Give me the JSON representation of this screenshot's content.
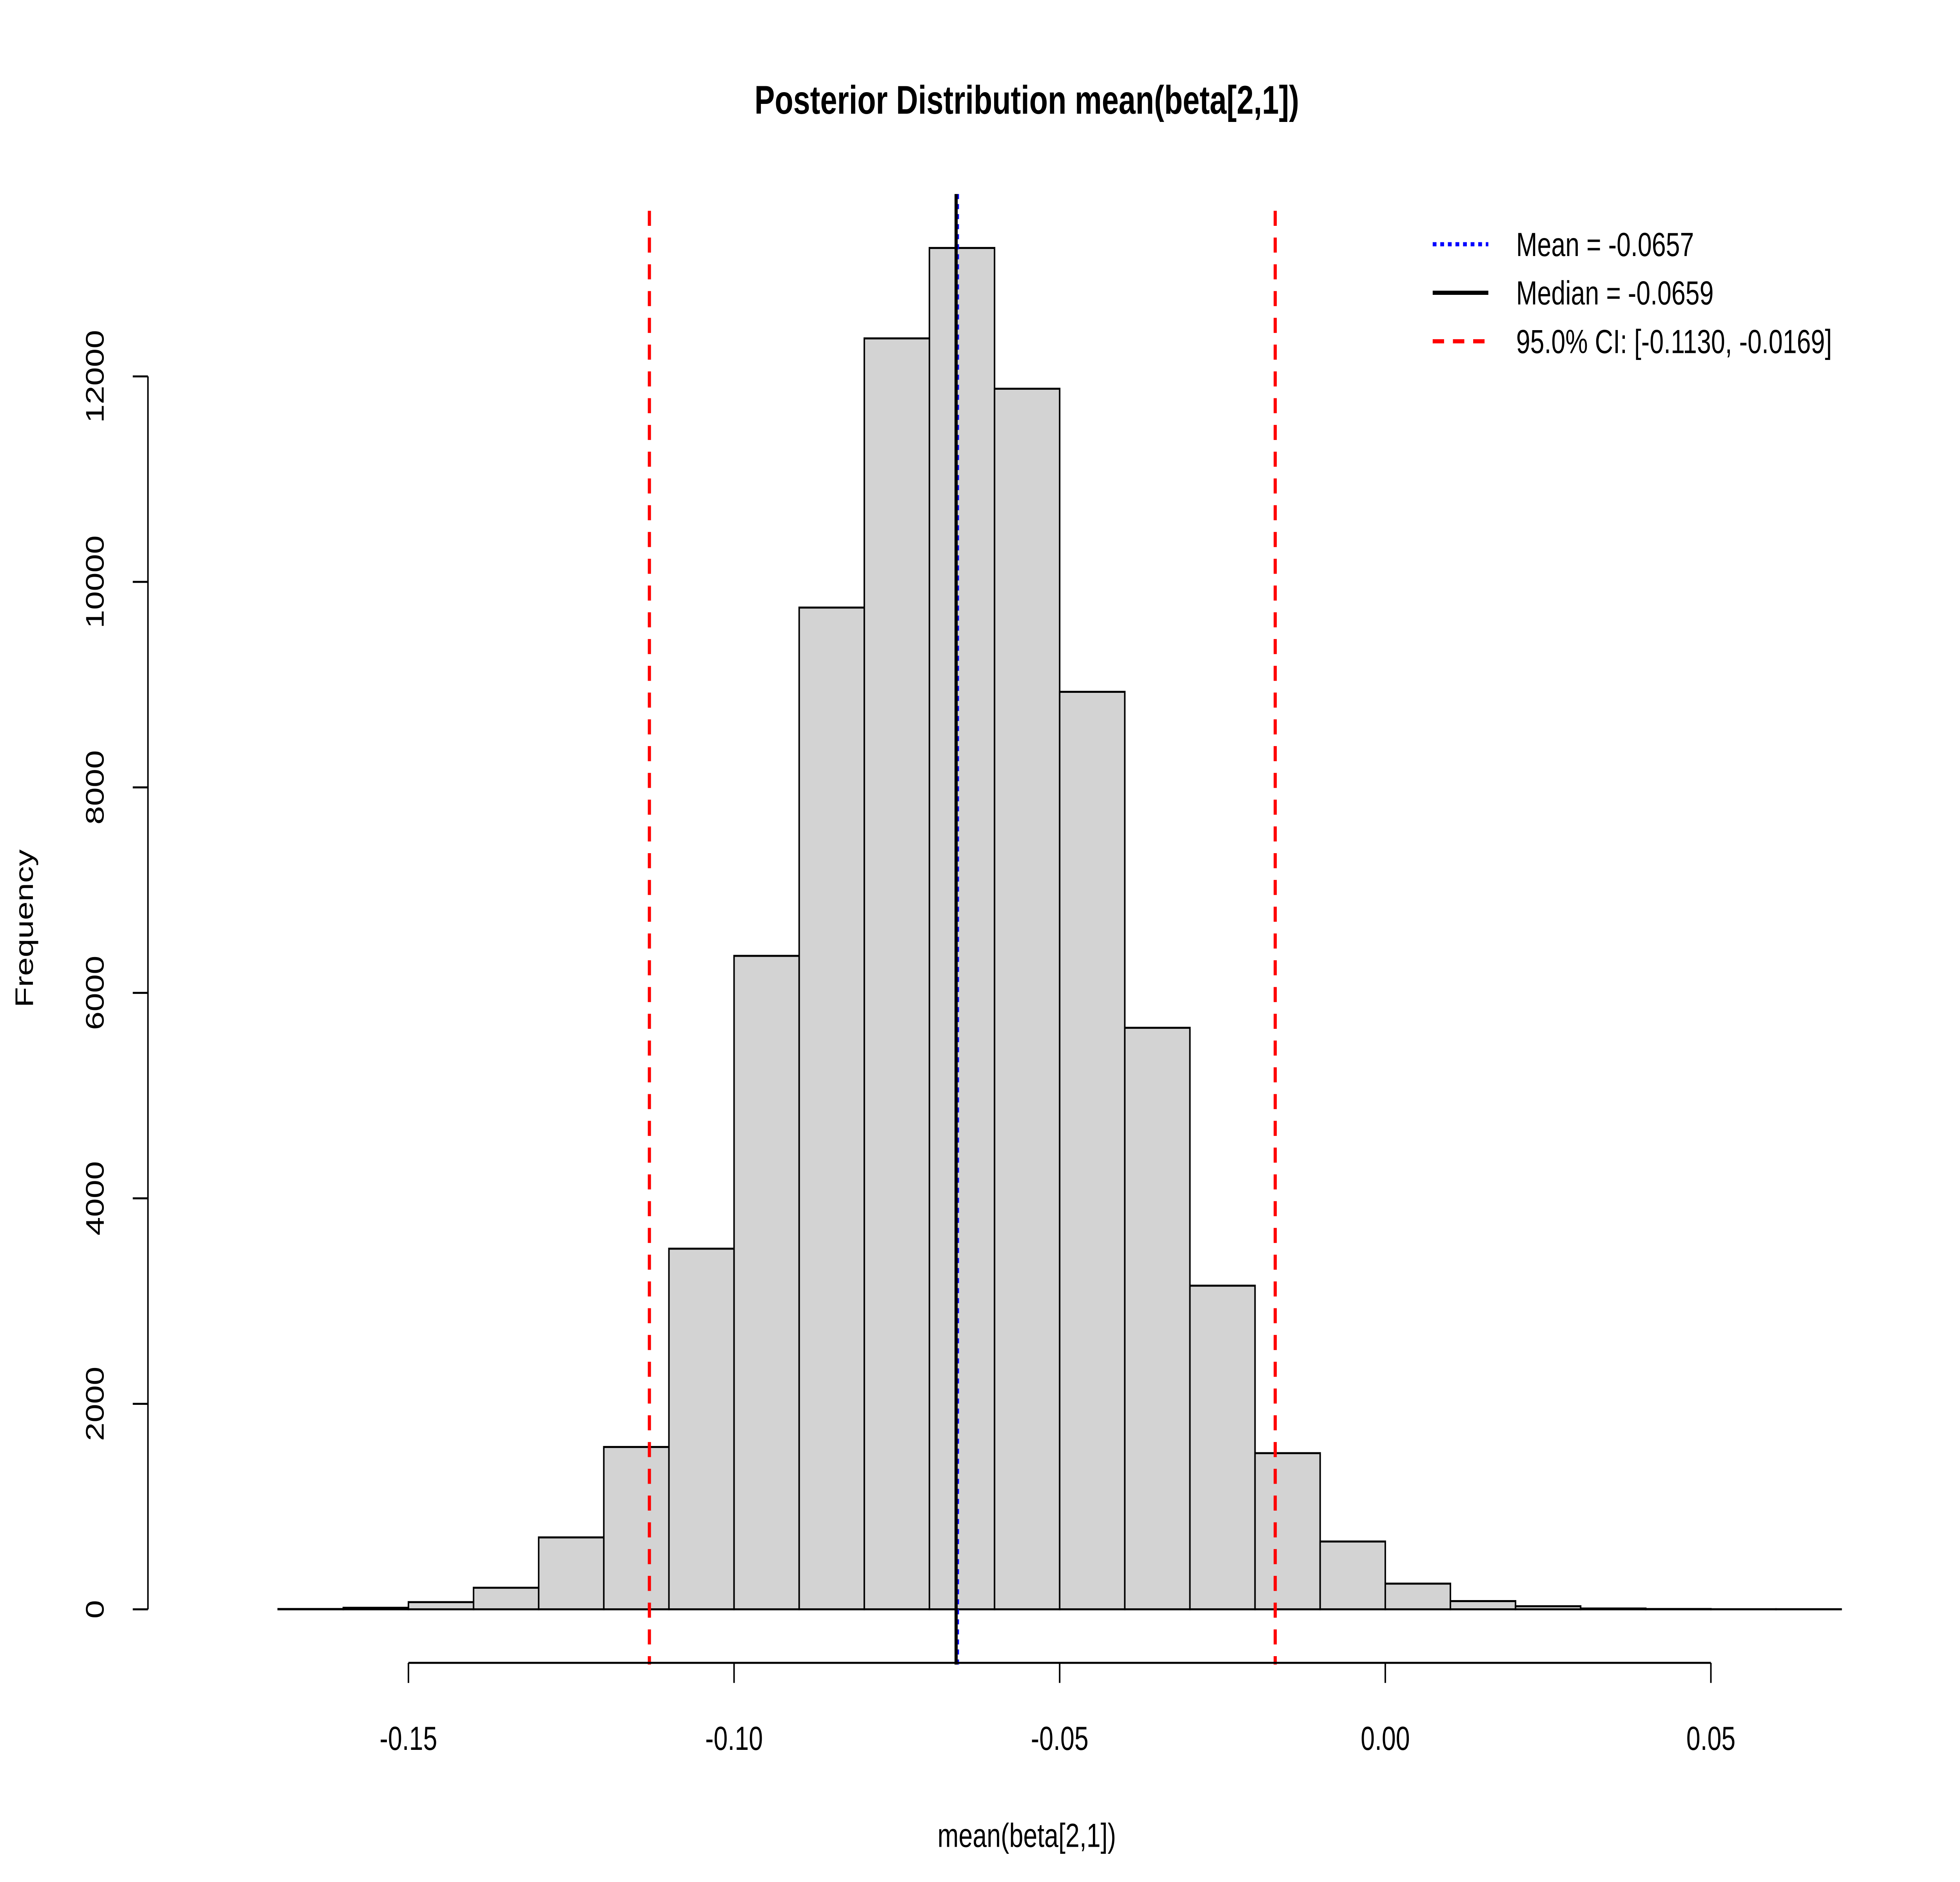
{
  "chart_data": {
    "type": "bar",
    "title": "Posterior Distribution mean(beta[2,1])",
    "xlabel": "mean(beta[2,1])",
    "ylabel": "Frequency",
    "bin_start": -0.17,
    "bin_width": 0.01,
    "values": [
      3,
      15,
      70,
      210,
      700,
      1580,
      3510,
      6360,
      9750,
      12370,
      13250,
      11880,
      8930,
      5660,
      3150,
      1520,
      660,
      250,
      80,
      30,
      8,
      3,
      1,
      1
    ],
    "xlim": [
      -0.17,
      0.07
    ],
    "ylim": [
      0,
      13500
    ],
    "x_ticks": [
      -0.15,
      -0.1,
      -0.05,
      0.0,
      0.05
    ],
    "x_tick_labels": [
      "-0.15",
      "-0.10",
      "-0.05",
      "0.00",
      "0.05"
    ],
    "y_ticks": [
      0,
      2000,
      4000,
      6000,
      8000,
      10000,
      12000
    ],
    "y_tick_labels": [
      "0",
      "2000",
      "4000",
      "6000",
      "8000",
      "10000",
      "12000"
    ],
    "bar_fill": "#d3d3d3",
    "grid": false,
    "vlines": [
      {
        "name": "mean",
        "x": -0.0657,
        "color": "#0000ff",
        "style": "dotted"
      },
      {
        "name": "median",
        "x": -0.0659,
        "color": "#000000",
        "style": "solid"
      },
      {
        "name": "ci_low",
        "x": -0.113,
        "color": "#ff0000",
        "style": "dashed"
      },
      {
        "name": "ci_high",
        "x": -0.0169,
        "color": "#ff0000",
        "style": "dashed"
      }
    ],
    "legend": {
      "position": "top-right",
      "entries": [
        {
          "label": "Mean = -0.0657",
          "color": "#0000ff",
          "style": "dotted"
        },
        {
          "label": "Median = -0.0659",
          "color": "#000000",
          "style": "solid"
        },
        {
          "label": "95.0% CI: [-0.1130, -0.0169]",
          "color": "#ff0000",
          "style": "dashed"
        }
      ]
    }
  }
}
